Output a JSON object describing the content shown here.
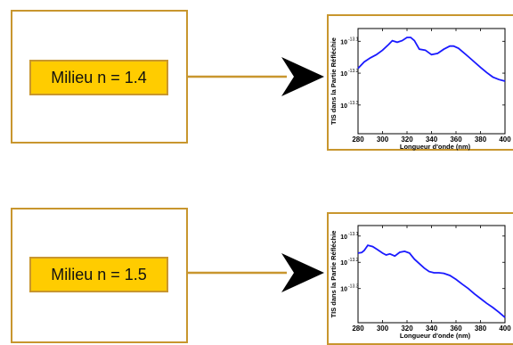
{
  "colors": {
    "border": "#c8962e",
    "label_fill": "#ffcc00",
    "curve": "#1a1aff",
    "arrow": "#000000"
  },
  "panels": [
    {
      "label": "Milieu n = 1.4"
    },
    {
      "label": "Milieu n = 1.5"
    }
  ],
  "chart_data": [
    {
      "type": "line",
      "xlabel": "Longueur d'onde (nm)",
      "ylabel": "TIS dans la Partie Réfléchie",
      "xticks": [
        "280",
        "300",
        "320",
        "340",
        "360",
        "380",
        "400"
      ],
      "yticks": [
        {
          "base": "10",
          "exp": "-13.1"
        },
        {
          "base": "10",
          "exp": "-13.2"
        },
        {
          "base": "10",
          "exp": "-13.3"
        }
      ],
      "xlim": [
        280,
        400
      ],
      "ylim_log10": [
        -13.39,
        -13.06
      ],
      "log_scale_y": true,
      "series": [
        {
          "x": [
            280,
            285,
            290,
            295,
            300,
            305,
            308,
            312,
            316,
            320,
            323,
            326,
            330,
            335,
            340,
            345,
            350,
            355,
            358,
            362,
            366,
            370,
            375,
            380,
            385,
            390,
            395,
            400
          ],
          "log10_y": [
            -13.185,
            -13.165,
            -13.152,
            -13.142,
            -13.128,
            -13.11,
            -13.098,
            -13.103,
            -13.098,
            -13.088,
            -13.088,
            -13.098,
            -13.125,
            -13.128,
            -13.142,
            -13.138,
            -13.125,
            -13.115,
            -13.115,
            -13.122,
            -13.135,
            -13.148,
            -13.165,
            -13.182,
            -13.198,
            -13.212,
            -13.22,
            -13.225
          ]
        }
      ]
    },
    {
      "type": "line",
      "xlabel": "Longueur d'onde (nm)",
      "ylabel": "TIS dans la Partie Réfléchie",
      "xticks": [
        "280",
        "300",
        "320",
        "340",
        "360",
        "380",
        "400"
      ],
      "yticks": [
        {
          "base": "10",
          "exp": "-13.1"
        },
        {
          "base": "10",
          "exp": "-13.2"
        },
        {
          "base": "10",
          "exp": "-13.3"
        }
      ],
      "xlim": [
        280,
        400
      ],
      "ylim_log10": [
        -13.43,
        -13.06
      ],
      "log_scale_y": true,
      "series": [
        {
          "x": [
            280,
            283,
            285,
            288,
            292,
            296,
            300,
            303,
            306,
            310,
            314,
            318,
            322,
            326,
            330,
            334,
            338,
            342,
            346,
            350,
            355,
            360,
            365,
            370,
            375,
            380,
            385,
            390,
            395,
            400
          ],
          "log10_y": [
            -13.165,
            -13.163,
            -13.155,
            -13.135,
            -13.14,
            -13.152,
            -13.165,
            -13.172,
            -13.168,
            -13.176,
            -13.162,
            -13.158,
            -13.165,
            -13.188,
            -13.205,
            -13.222,
            -13.235,
            -13.24,
            -13.24,
            -13.242,
            -13.25,
            -13.265,
            -13.283,
            -13.3,
            -13.32,
            -13.338,
            -13.356,
            -13.372,
            -13.39,
            -13.41
          ]
        }
      ]
    }
  ]
}
